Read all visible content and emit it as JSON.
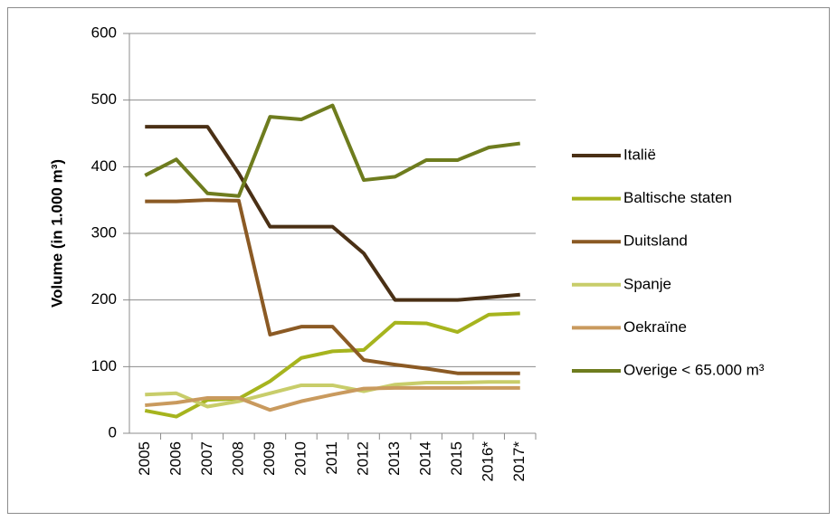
{
  "chart_data": {
    "type": "line",
    "y_label": "Volume (in 1.000 m³)",
    "categories": [
      "2005",
      "2006",
      "2007",
      "2008",
      "2009",
      "2010",
      "2011",
      "2012",
      "2013",
      "2014",
      "2015",
      "2016*",
      "2017*"
    ],
    "series": [
      {
        "name": "Italië",
        "color": "#4a3015",
        "values": [
          460,
          460,
          460,
          390,
          310,
          310,
          310,
          270,
          200,
          200,
          200,
          204,
          208
        ]
      },
      {
        "name": "Baltische staten",
        "color": "#a6b41e",
        "values": [
          34,
          25,
          50,
          52,
          78,
          113,
          123,
          125,
          166,
          165,
          152,
          178,
          180
        ]
      },
      {
        "name": "Duitsland",
        "color": "#8b5a24",
        "values": [
          348,
          348,
          350,
          349,
          148,
          160,
          160,
          110,
          103,
          97,
          90,
          90,
          90
        ]
      },
      {
        "name": "Spanje",
        "color": "#c8cd6a",
        "values": [
          58,
          60,
          40,
          48,
          60,
          72,
          72,
          63,
          73,
          76,
          76,
          77,
          77
        ]
      },
      {
        "name": "Oekraïne",
        "color": "#c99a5e",
        "values": [
          42,
          46,
          53,
          53,
          35,
          48,
          58,
          67,
          68,
          68,
          68,
          68,
          68
        ]
      },
      {
        "name": "Overige < 65.000 m³",
        "color": "#6e7c1e",
        "values": [
          387,
          411,
          360,
          356,
          475,
          471,
          492,
          380,
          385,
          410,
          410,
          429,
          435
        ]
      }
    ],
    "ylim": [
      0,
      600
    ],
    "yticks": [
      0,
      100,
      200,
      300,
      400,
      500,
      600
    ],
    "grid": true,
    "legend": "right"
  }
}
